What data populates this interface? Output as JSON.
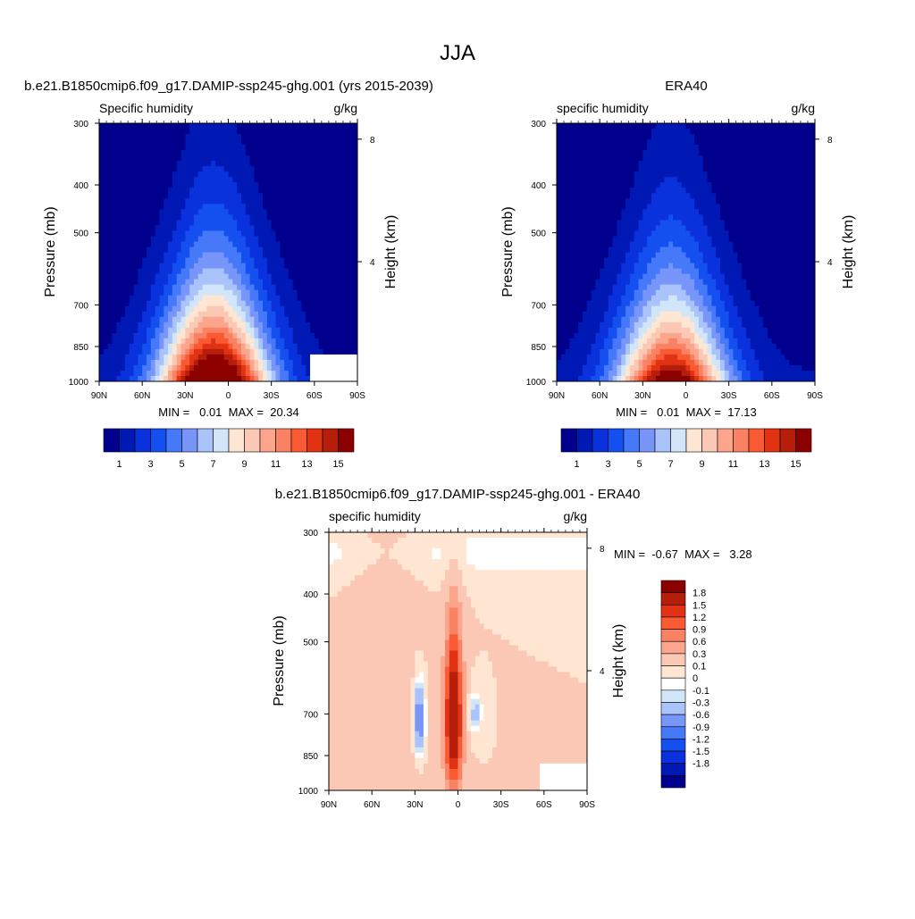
{
  "figure_title": "JJA",
  "colors": {
    "blues_to_reds": [
      "#00008c",
      "#0019b4",
      "#0a32dc",
      "#1450f0",
      "#4678fa",
      "#7896fa",
      "#aac3fa",
      "#d2e6fa",
      "#ffe6d2",
      "#fac8b4",
      "#faa58c",
      "#fa8264",
      "#fa5a32",
      "#e13214",
      "#b41e0a",
      "#8c0000"
    ],
    "diff": [
      "#00008c",
      "#0019b4",
      "#0a32dc",
      "#1450f0",
      "#4678fa",
      "#7896fa",
      "#aac3fa",
      "#d2e6fa",
      "#ffffff",
      "#ffe6d2",
      "#fac8b4",
      "#faa58c",
      "#fa8264",
      "#fa5a32",
      "#e13214",
      "#b41e0a",
      "#8c0000"
    ]
  },
  "panels": {
    "model": {
      "title": "b.e21.B1850cmip6.f09_g17.DAMIP-ssp245-ghg.001 (yrs 2015-2039)",
      "left_label": "Specific humidity",
      "right_label": "g/kg",
      "ylabel": "Pressure (mb)",
      "ylabel_right": "Height (km)",
      "stats": "MIN =   0.01  MAX =  20.34",
      "peak": 20.34
    },
    "obs": {
      "title": "ERA40",
      "left_label": "specific humidity",
      "right_label": "g/kg",
      "ylabel": "Pressure (mb)",
      "ylabel_right": "Height (km)",
      "stats": "MIN =   0.01  MAX =  17.13",
      "peak": 17.13
    },
    "diff": {
      "title": "b.e21.B1850cmip6.f09_g17.DAMIP-ssp245-ghg.001 - ERA40",
      "left_label": "specific humidity",
      "right_label": "g/kg",
      "ylabel": "Pressure (mb)",
      "ylabel_right": "Height (km)",
      "stats": "MIN =  -0.67  MAX =   3.28"
    }
  },
  "chart_data": [
    {
      "type": "heatmap",
      "title": "b.e21.B1850cmip6.f09_g17.DAMIP-ssp245-ghg.001 (yrs 2015-2039)",
      "variable": "Specific humidity",
      "units": "g/kg",
      "xlabel": "",
      "ylabel": "Pressure (mb)",
      "ylabel_right": "Height (km)",
      "x_ticks": [
        "90N",
        "60N",
        "30N",
        "0",
        "30S",
        "60S",
        "90S"
      ],
      "y_ticks": [
        "300",
        "400",
        "500",
        "700",
        "850",
        "1000"
      ],
      "y_ticks_right": [
        "8",
        "4"
      ],
      "ylim": [
        1000,
        300
      ],
      "y_scale": "log",
      "min": 0.01,
      "max": 20.34,
      "colorbar_labels": [
        "1",
        "3",
        "5",
        "7",
        "9",
        "11",
        "13",
        "15"
      ]
    },
    {
      "type": "heatmap",
      "title": "ERA40",
      "variable": "specific humidity",
      "units": "g/kg",
      "xlabel": "",
      "ylabel": "Pressure (mb)",
      "ylabel_right": "Height (km)",
      "x_ticks": [
        "90N",
        "60N",
        "30N",
        "0",
        "30S",
        "60S",
        "90S"
      ],
      "y_ticks": [
        "300",
        "400",
        "500",
        "700",
        "850",
        "1000"
      ],
      "y_ticks_right": [
        "8",
        "4"
      ],
      "ylim": [
        1000,
        300
      ],
      "y_scale": "log",
      "min": 0.01,
      "max": 17.13,
      "colorbar_labels": [
        "1",
        "3",
        "5",
        "7",
        "9",
        "11",
        "13",
        "15"
      ]
    },
    {
      "type": "heatmap",
      "title": "b.e21.B1850cmip6.f09_g17.DAMIP-ssp245-ghg.001 - ERA40",
      "variable": "specific humidity",
      "units": "g/kg",
      "xlabel": "",
      "ylabel": "Pressure (mb)",
      "ylabel_right": "Height (km)",
      "x_ticks": [
        "90N",
        "60N",
        "30N",
        "0",
        "30S",
        "60S",
        "90S"
      ],
      "y_ticks": [
        "300",
        "400",
        "500",
        "700",
        "850",
        "1000"
      ],
      "y_ticks_right": [
        "8",
        "4"
      ],
      "ylim": [
        1000,
        300
      ],
      "y_scale": "log",
      "min": -0.67,
      "max": 3.28,
      "colorbar_labels": [
        "1.8",
        "1.5",
        "1.2",
        "0.9",
        "0.6",
        "0.3",
        "0.1",
        "0",
        "-0.1",
        "-0.3",
        "-0.6",
        "-0.9",
        "-1.2",
        "-1.5",
        "-1.8"
      ]
    }
  ]
}
